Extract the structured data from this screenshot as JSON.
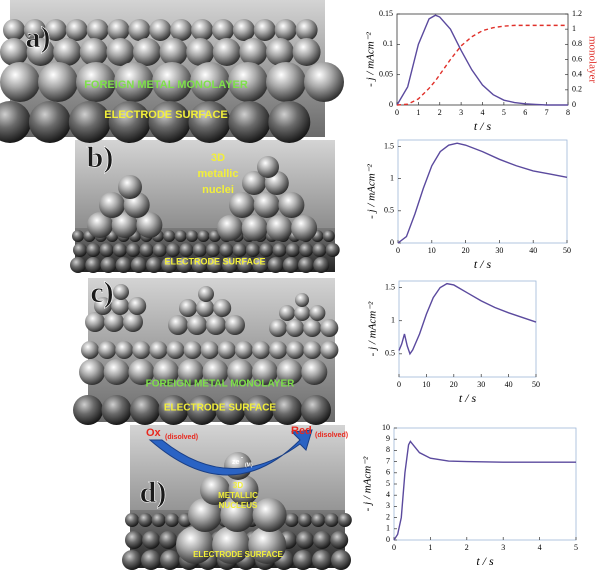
{
  "panels": [
    {
      "label": "a)",
      "image_texts": [
        "FOREIGN METAL MONOLAYER",
        "ELECTRODE SURFACE"
      ]
    },
    {
      "label": "b)",
      "image_texts": [
        "3D",
        "metallic",
        "nuclei",
        "ELECTRODE SURFACE"
      ]
    },
    {
      "label": "c)",
      "image_texts": [
        "FOREIGN METAL MONOLAYER",
        "ELECTRODE SURFACE"
      ]
    },
    {
      "label": "d)",
      "image_texts": [
        "Ox",
        "(disolved)",
        "Red",
        "(disolved)",
        "ze",
        "-",
        "(M)",
        "3D",
        "METALLIC",
        "NUCLEUS",
        "ELECTRODE SURFACE"
      ]
    }
  ],
  "chart_data": [
    {
      "type": "line",
      "xlabel": "t / s",
      "ylabel": "- j / mAcm⁻²",
      "y2label": "monolayer",
      "x": [
        0,
        0.5,
        1,
        1.5,
        1.8,
        2,
        2.5,
        3,
        3.5,
        4,
        4.5,
        5,
        5.5,
        6,
        6.5,
        7,
        7.5,
        8
      ],
      "series": [
        {
          "color": "#5b4a9e",
          "values": [
            0,
            0.03,
            0.1,
            0.142,
            0.148,
            0.145,
            0.125,
            0.09,
            0.058,
            0.033,
            0.017,
            0.008,
            0.004,
            0.002,
            0.001,
            0,
            0,
            0
          ]
        },
        {
          "color": "#e0302a",
          "axis": "y2",
          "style": "dashed",
          "values": [
            0,
            0.01,
            0.08,
            0.22,
            0.32,
            0.4,
            0.6,
            0.78,
            0.9,
            0.98,
            1.02,
            1.04,
            1.05,
            1.05,
            1.05,
            1.05,
            1.05,
            1.05
          ]
        }
      ],
      "xlim": [
        0,
        8
      ],
      "xticks": [
        0,
        1,
        2,
        3,
        4,
        5,
        6,
        7,
        8
      ],
      "ylim": [
        0,
        0.15
      ],
      "yticks": [
        0,
        0.05,
        0.1,
        0.15
      ],
      "y2lim": [
        0,
        1.2
      ],
      "y2ticks": [
        0,
        0.2,
        0.4,
        0.6,
        0.8,
        1,
        1.2
      ],
      "frame_color": "#333333"
    },
    {
      "type": "line",
      "xlabel": "t / s",
      "ylabel": "- j / mAcm⁻²",
      "x": [
        0,
        2.5,
        5,
        7.5,
        10,
        12.5,
        15,
        17.5,
        20,
        25,
        30,
        35,
        40,
        45,
        50
      ],
      "series": [
        {
          "color": "#5b4a9e",
          "values": [
            0,
            0.1,
            0.45,
            0.85,
            1.2,
            1.42,
            1.52,
            1.55,
            1.52,
            1.42,
            1.3,
            1.2,
            1.12,
            1.07,
            1.02
          ]
        }
      ],
      "xlim": [
        0,
        50
      ],
      "xticks": [
        0,
        10,
        20,
        30,
        40,
        50
      ],
      "ylim": [
        0,
        1.6
      ],
      "yticks": [
        0,
        0.5,
        1,
        1.5
      ],
      "frame_color": "#9fb8d8"
    },
    {
      "type": "line",
      "xlabel": "t / s",
      "ylabel": "- j / mAcm⁻²",
      "x": [
        0,
        1,
        2,
        3,
        4,
        5,
        7.5,
        10,
        12.5,
        15,
        17.5,
        20,
        25,
        30,
        35,
        40,
        45,
        50
      ],
      "series": [
        {
          "color": "#5b4a9e",
          "values": [
            0.55,
            0.65,
            0.8,
            0.62,
            0.5,
            0.56,
            0.8,
            1.1,
            1.35,
            1.5,
            1.56,
            1.54,
            1.42,
            1.3,
            1.2,
            1.12,
            1.05,
            0.98
          ]
        }
      ],
      "xlim": [
        0,
        50
      ],
      "xticks": [
        0,
        10,
        20,
        30,
        40,
        50
      ],
      "ylim": [
        0.15,
        1.6
      ],
      "yticks": [
        0.5,
        1,
        1.5
      ],
      "frame_color": "#9fb8d8"
    },
    {
      "type": "line",
      "xlabel": "t / s",
      "ylabel": "- j / mAcm⁻²",
      "x": [
        0,
        0.1,
        0.2,
        0.3,
        0.4,
        0.45,
        0.5,
        0.7,
        1,
        1.5,
        2,
        3,
        4,
        5
      ],
      "series": [
        {
          "color": "#5b4a9e",
          "values": [
            0,
            0.5,
            2,
            6,
            8.5,
            8.8,
            8.6,
            7.8,
            7.3,
            7.05,
            7,
            6.95,
            6.95,
            6.95
          ]
        }
      ],
      "xlim": [
        0,
        5
      ],
      "xticks": [
        0,
        1,
        2,
        3,
        4,
        5
      ],
      "ylim": [
        0,
        10
      ],
      "yticks": [
        0,
        1,
        2,
        3,
        4,
        5,
        6,
        7,
        8,
        9,
        10
      ],
      "frame_color": "#9fb8d8"
    }
  ]
}
